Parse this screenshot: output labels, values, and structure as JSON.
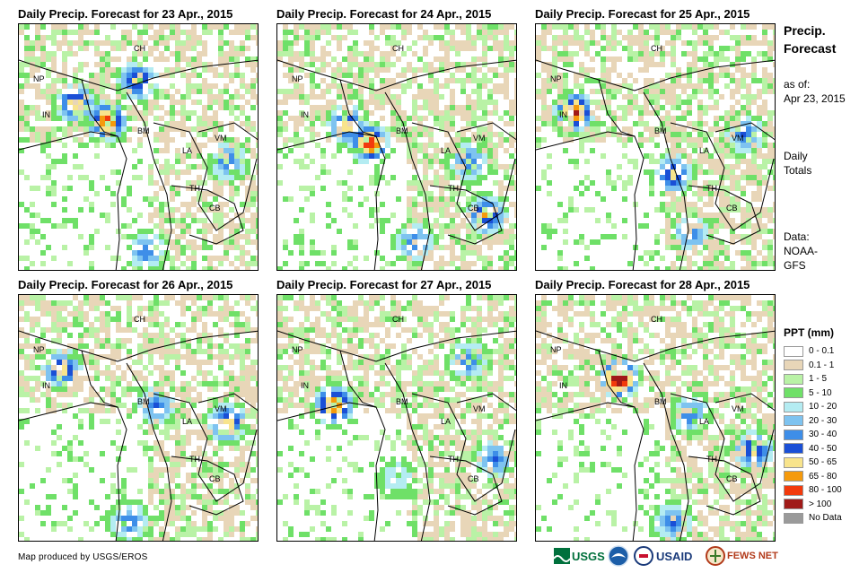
{
  "panels": [
    {
      "title": "Daily Precip. Forecast for 23 Apr., 2015"
    },
    {
      "title": "Daily Precip. Forecast for 24 Apr., 2015"
    },
    {
      "title": "Daily Precip. Forecast for 25 Apr., 2015"
    },
    {
      "title": "Daily Precip. Forecast for 26 Apr., 2015"
    },
    {
      "title": "Daily Precip. Forecast for 27 Apr., 2015"
    },
    {
      "title": "Daily Precip. Forecast for 28 Apr., 2015"
    }
  ],
  "country_labels": [
    "CH",
    "NP",
    "IN",
    "BM",
    "VM",
    "LA",
    "TH",
    "CB"
  ],
  "sidebar": {
    "title_line1": "Precip.",
    "title_line2": "Forecast",
    "asof_label": "as of:",
    "asof_date": "Apr 23, 2015",
    "totals_line1": "Daily",
    "totals_line2": "Totals",
    "data_label": "Data:",
    "data_line1": "NOAA-",
    "data_line2": "GFS"
  },
  "legend": {
    "title": "PPT (mm)",
    "items": [
      {
        "label": "0 - 0.1",
        "color": "#ffffff"
      },
      {
        "label": "0.1 - 1",
        "color": "#e8d6b8"
      },
      {
        "label": "1 - 5",
        "color": "#b9f2a6"
      },
      {
        "label": "5 - 10",
        "color": "#6fe068"
      },
      {
        "label": "10 - 20",
        "color": "#b4ecf2"
      },
      {
        "label": "20 - 30",
        "color": "#7ec3f0"
      },
      {
        "label": "30 - 40",
        "color": "#3e8ee8"
      },
      {
        "label": "40 - 50",
        "color": "#1a4fd6"
      },
      {
        "label": "50 - 65",
        "color": "#f8e48c"
      },
      {
        "label": "65 - 80",
        "color": "#f59a0c"
      },
      {
        "label": "80 - 100",
        "color": "#f23a0c"
      },
      {
        "label": "> 100",
        "color": "#a01a18"
      },
      {
        "label": "No Data",
        "color": "#9a9a9a"
      }
    ]
  },
  "credit": "Map produced by USGS/EROS",
  "logos": {
    "usgs": "USGS",
    "usaid": "USAID",
    "fewsnet": "FEWS NET"
  }
}
